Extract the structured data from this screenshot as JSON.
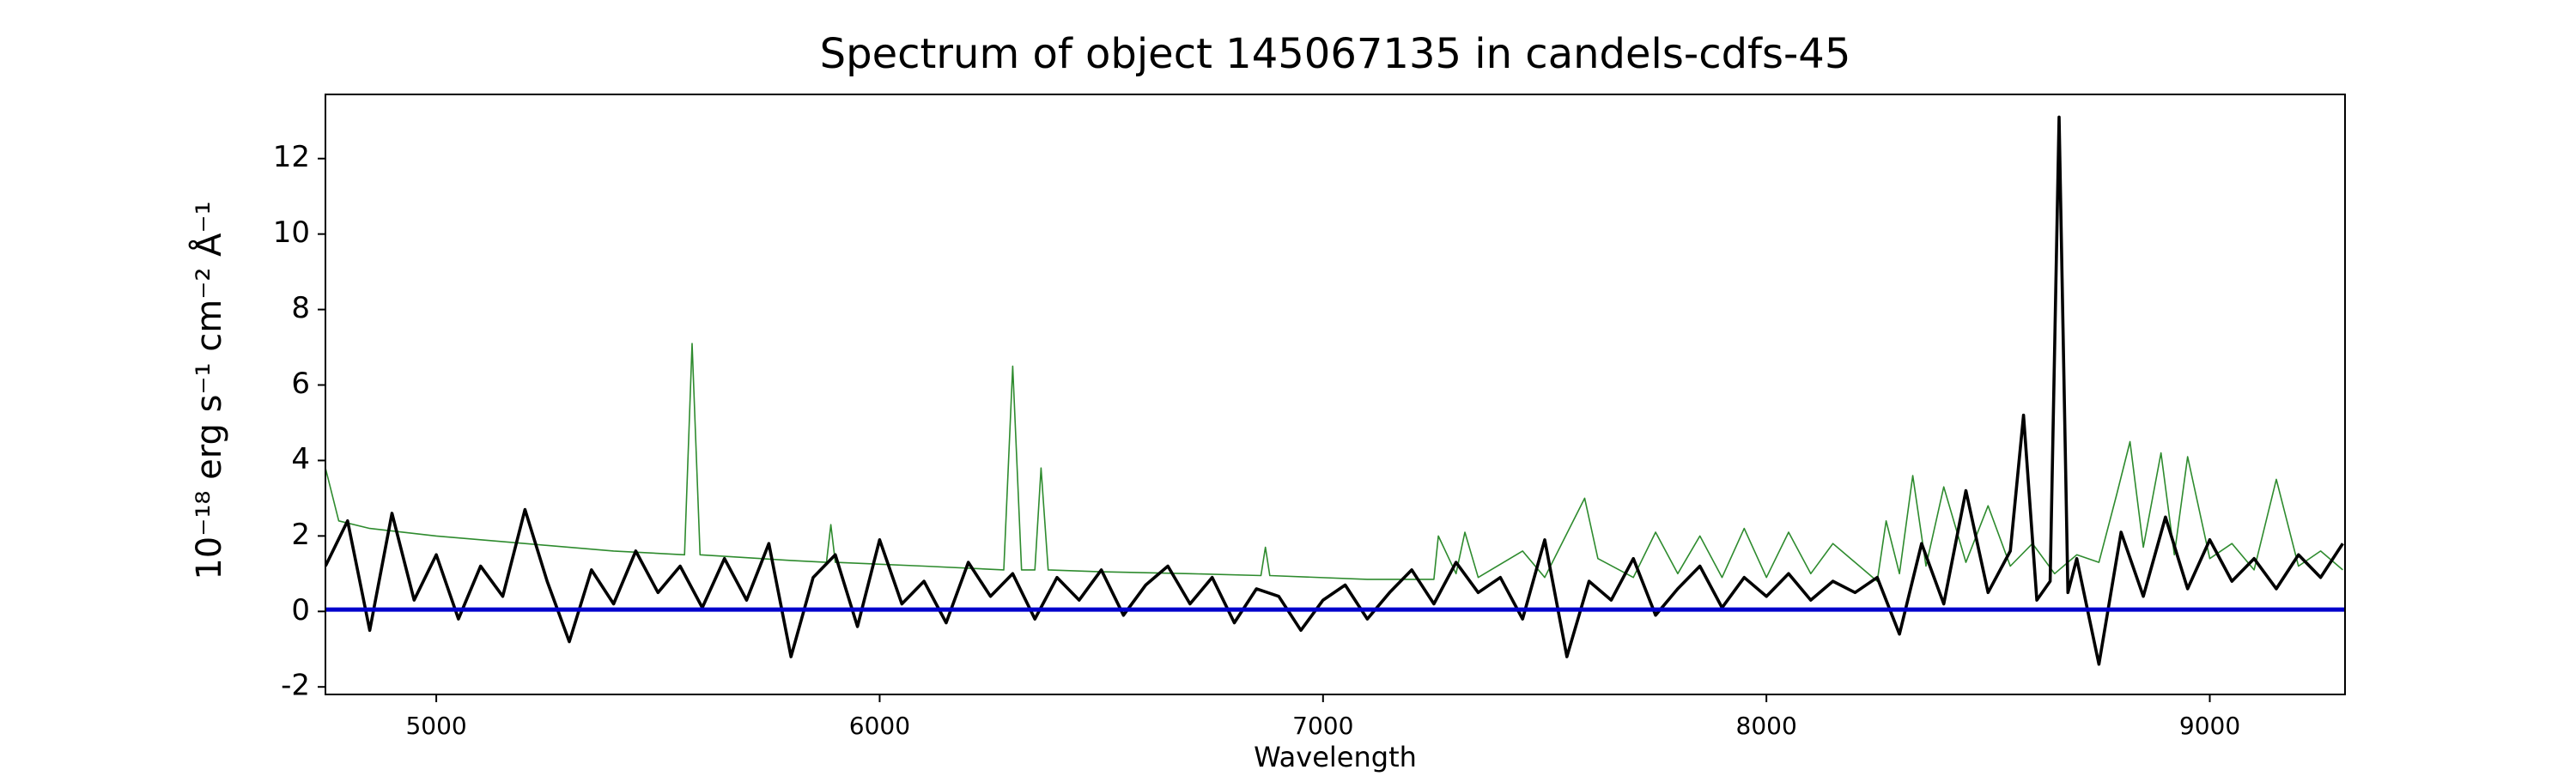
{
  "chart_data": {
    "type": "line",
    "title": "Spectrum of object 145067135 in candels-cdfs-45",
    "x_label": "Wavelength",
    "y_label": "10⁻¹⁸ erg s⁻¹ cm⁻² Å⁻¹",
    "xlim": [
      4750,
      9305
    ],
    "ylim": [
      -2.2,
      13.7
    ],
    "xticks": [
      5000,
      6000,
      7000,
      8000,
      9000
    ],
    "yticks": [
      -2,
      0,
      2,
      4,
      6,
      8,
      10,
      12
    ],
    "series": [
      {
        "color": "#2e8b2e",
        "x": [
          4750,
          4780,
          4850,
          5000,
          5200,
          5400,
          5560,
          5577,
          5595,
          5800,
          5880,
          5890,
          5900,
          6100,
          6280,
          6300,
          6320,
          6350,
          6364,
          6380,
          6500,
          6700,
          6860,
          6870,
          6880,
          7100,
          7250,
          7260,
          7300,
          7320,
          7350,
          7450,
          7500,
          7590,
          7620,
          7700,
          7750,
          7800,
          7850,
          7900,
          7950,
          8000,
          8050,
          8100,
          8150,
          8250,
          8270,
          8300,
          8330,
          8360,
          8400,
          8450,
          8500,
          8550,
          8600,
          8650,
          8700,
          8750,
          8790,
          8820,
          8850,
          8890,
          8920,
          8950,
          9000,
          9050,
          9100,
          9150,
          9200,
          9250,
          9300
        ],
        "values": [
          3.8,
          2.4,
          2.2,
          2.0,
          1.8,
          1.6,
          1.5,
          7.1,
          1.5,
          1.35,
          1.3,
          2.3,
          1.3,
          1.2,
          1.1,
          6.5,
          1.1,
          1.1,
          3.8,
          1.1,
          1.05,
          1.0,
          0.95,
          1.7,
          0.95,
          0.85,
          0.85,
          2.0,
          1.0,
          2.1,
          0.9,
          1.6,
          0.9,
          3.0,
          1.4,
          0.9,
          2.1,
          1.0,
          2.0,
          0.9,
          2.2,
          0.9,
          2.1,
          1.0,
          1.8,
          0.8,
          2.4,
          1.0,
          3.6,
          1.2,
          3.3,
          1.3,
          2.8,
          1.2,
          1.8,
          1.0,
          1.5,
          1.3,
          3.1,
          4.5,
          1.7,
          4.2,
          1.5,
          4.1,
          1.4,
          1.8,
          1.1,
          3.5,
          1.2,
          1.6,
          1.1
        ]
      },
      {
        "color": "#000000",
        "x": [
          4750,
          4800,
          4850,
          4900,
          4950,
          5000,
          5050,
          5100,
          5150,
          5200,
          5250,
          5300,
          5350,
          5400,
          5450,
          5500,
          5550,
          5600,
          5650,
          5700,
          5750,
          5800,
          5850,
          5900,
          5950,
          6000,
          6050,
          6100,
          6150,
          6200,
          6250,
          6300,
          6350,
          6400,
          6450,
          6500,
          6550,
          6600,
          6650,
          6700,
          6750,
          6800,
          6850,
          6900,
          6950,
          7000,
          7050,
          7100,
          7150,
          7200,
          7250,
          7300,
          7350,
          7400,
          7450,
          7500,
          7550,
          7600,
          7650,
          7700,
          7750,
          7800,
          7850,
          7900,
          7950,
          8000,
          8050,
          8100,
          8150,
          8200,
          8250,
          8300,
          8350,
          8400,
          8450,
          8500,
          8550,
          8580,
          8610,
          8640,
          8660,
          8680,
          8700,
          8750,
          8800,
          8850,
          8900,
          8950,
          9000,
          9050,
          9100,
          9150,
          9200,
          9250,
          9300
        ],
        "values": [
          1.2,
          2.4,
          -0.5,
          2.6,
          0.3,
          1.5,
          -0.2,
          1.2,
          0.4,
          2.7,
          0.8,
          -0.8,
          1.1,
          0.2,
          1.6,
          0.5,
          1.2,
          0.1,
          1.4,
          0.3,
          1.8,
          -1.2,
          0.9,
          1.5,
          -0.4,
          1.9,
          0.2,
          0.8,
          -0.3,
          1.3,
          0.4,
          1.0,
          -0.2,
          0.9,
          0.3,
          1.1,
          -0.1,
          0.7,
          1.2,
          0.2,
          0.9,
          -0.3,
          0.6,
          0.4,
          -0.5,
          0.3,
          0.7,
          -0.2,
          0.5,
          1.1,
          0.2,
          1.3,
          0.5,
          0.9,
          -0.2,
          1.9,
          -1.2,
          0.8,
          0.3,
          1.4,
          -0.1,
          0.6,
          1.2,
          0.1,
          0.9,
          0.4,
          1.0,
          0.3,
          0.8,
          0.5,
          0.9,
          -0.6,
          1.8,
          0.2,
          3.2,
          0.5,
          1.6,
          5.2,
          0.3,
          0.8,
          13.1,
          0.5,
          1.4,
          -1.4,
          2.1,
          0.4,
          2.5,
          0.6,
          1.9,
          0.8,
          1.4,
          0.6,
          1.5,
          0.9,
          1.8
        ]
      },
      {
        "color": "#0000cc",
        "x": [
          4750,
          9305
        ],
        "values": [
          0.05,
          0.05
        ]
      }
    ]
  }
}
